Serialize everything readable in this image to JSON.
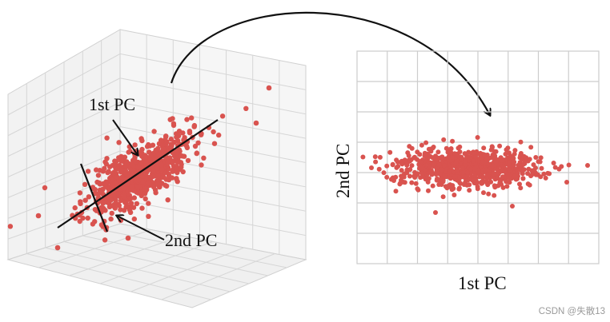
{
  "left_panel": {
    "first_pc_label": "1st PC",
    "second_pc_label": "2nd PC"
  },
  "right_panel": {
    "xlabel": "1st PC",
    "ylabel": "2nd PC"
  },
  "watermark": "CSDN @失散13",
  "colors": {
    "point": "#d9534f",
    "grid": "#cfcfcf",
    "axis_line": "#111111"
  }
}
